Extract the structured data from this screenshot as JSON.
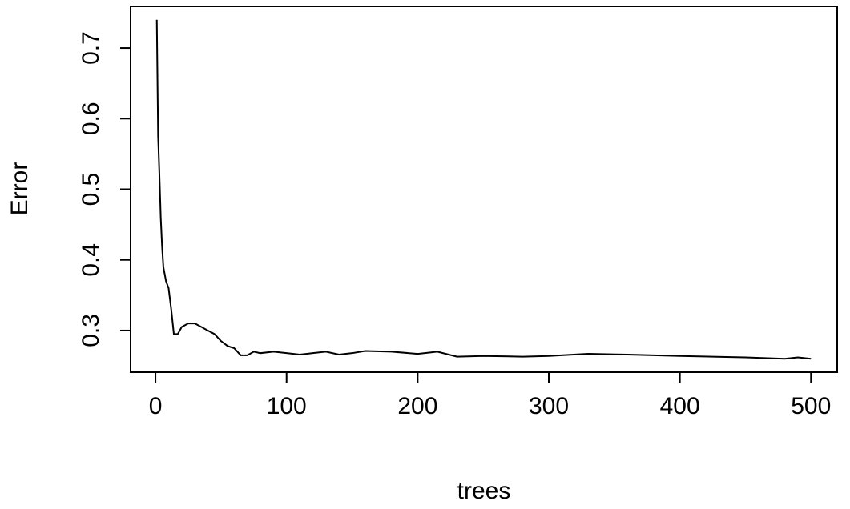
{
  "chart_data": {
    "type": "line",
    "x_label": "trees",
    "y_label": "Error",
    "x": [
      1,
      2,
      3,
      4,
      5,
      6,
      8,
      10,
      12,
      14,
      17,
      20,
      25,
      30,
      35,
      40,
      45,
      50,
      55,
      60,
      65,
      70,
      75,
      80,
      90,
      100,
      110,
      120,
      130,
      140,
      150,
      160,
      180,
      200,
      215,
      230,
      250,
      280,
      300,
      330,
      360,
      400,
      450,
      480,
      490,
      500
    ],
    "series": [
      {
        "color": "#000000",
        "values": [
          0.74,
          0.575,
          0.52,
          0.46,
          0.42,
          0.39,
          0.37,
          0.36,
          0.33,
          0.295,
          0.295,
          0.305,
          0.31,
          0.31,
          0.305,
          0.3,
          0.295,
          0.285,
          0.278,
          0.275,
          0.265,
          0.265,
          0.27,
          0.268,
          0.27,
          0.268,
          0.266,
          0.268,
          0.27,
          0.266,
          0.268,
          0.271,
          0.27,
          0.267,
          0.27,
          0.263,
          0.264,
          0.263,
          0.264,
          0.267,
          0.266,
          0.264,
          0.262,
          0.26,
          0.262,
          0.26
        ]
      }
    ],
    "xlim": [
      -19,
      520
    ],
    "ylim": [
      0.241,
      0.759
    ],
    "xticks": [
      0,
      100,
      200,
      300,
      400,
      500
    ],
    "yticks": [
      0.3,
      0.4,
      0.5,
      0.6,
      0.7
    ]
  }
}
